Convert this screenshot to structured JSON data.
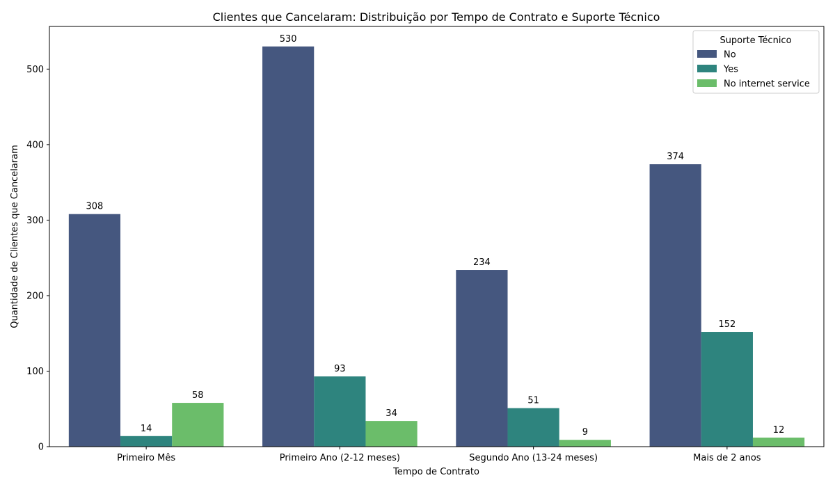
{
  "chart_data": {
    "type": "bar",
    "title": "Clientes que Cancelaram: Distribuição por Tempo de Contrato e Suporte Técnico",
    "xlabel": "Tempo de Contrato",
    "ylabel": "Quantidade de Clientes que Cancelaram",
    "categories": [
      "Primeiro Mês",
      "Primeiro Ano (2-12 meses)",
      "Segundo Ano (13-24 meses)",
      "Mais de 2 anos"
    ],
    "series": [
      {
        "name": "No",
        "color": "#45577f",
        "values": [
          308,
          530,
          234,
          374
        ]
      },
      {
        "name": "Yes",
        "color": "#2e847e",
        "values": [
          14,
          93,
          51,
          152
        ]
      },
      {
        "name": "No internet service",
        "color": "#6bbd6a",
        "values": [
          58,
          34,
          9,
          12
        ]
      }
    ],
    "ylim": [
      0,
      556.5
    ],
    "yticks": [
      0,
      100,
      200,
      300,
      400,
      500
    ],
    "legend": {
      "title": "Suporte Técnico",
      "placement": "top-right"
    },
    "grid": false
  }
}
